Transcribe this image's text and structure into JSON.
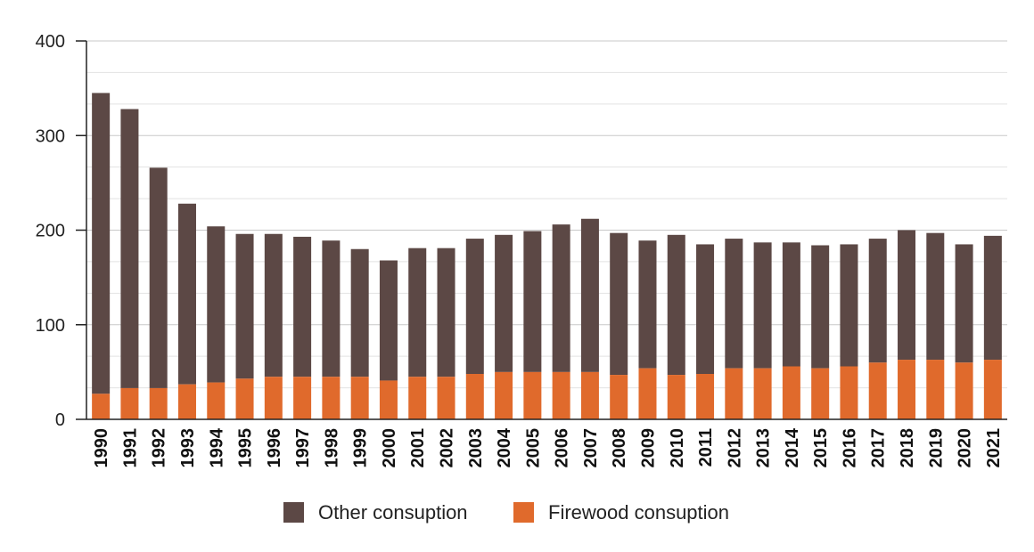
{
  "chart_data": {
    "type": "bar",
    "stacked": true,
    "categories": [
      "1990",
      "1991",
      "1992",
      "1993",
      "1994",
      "1995",
      "1996",
      "1997",
      "1998",
      "1999",
      "2000",
      "2001",
      "2002",
      "2003",
      "2004",
      "2005",
      "2006",
      "2007",
      "2008",
      "2009",
      "2010",
      "2011",
      "2012",
      "2013",
      "2014",
      "2015",
      "2016",
      "2017",
      "2018",
      "2019",
      "2020",
      "2021"
    ],
    "series": [
      {
        "name": "Firewood consuption",
        "color": "#E06A2C",
        "values": [
          27,
          33,
          33,
          37,
          39,
          43,
          45,
          45,
          45,
          45,
          41,
          45,
          45,
          48,
          50,
          50,
          50,
          50,
          47,
          54,
          47,
          48,
          54,
          54,
          56,
          54,
          56,
          60,
          63,
          63,
          60,
          63
        ]
      },
      {
        "name": "Other consuption",
        "color": "#5C4845",
        "values": [
          318,
          295,
          233,
          191,
          165,
          153,
          151,
          148,
          144,
          135,
          127,
          136,
          136,
          143,
          145,
          149,
          156,
          162,
          150,
          135,
          148,
          137,
          137,
          133,
          131,
          130,
          129,
          131,
          137,
          134,
          125,
          131
        ]
      }
    ],
    "ylim": [
      0,
      400
    ],
    "yticks": [
      "0",
      "100",
      "200",
      "300",
      "400"
    ],
    "grid": true,
    "legend_position": "bottom",
    "legend_order": [
      "Other consuption",
      "Firewood consuption"
    ]
  }
}
